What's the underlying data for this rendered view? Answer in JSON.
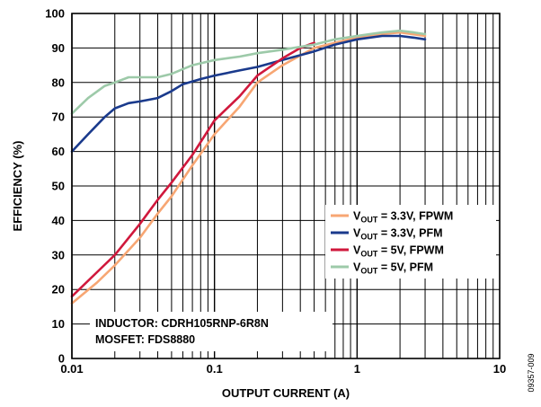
{
  "chart_data": {
    "type": "line",
    "xlabel": "OUTPUT CURRENT (A)",
    "ylabel": "EFFICIENCY (%)",
    "x_scale": "log",
    "xlim": [
      0.01,
      10
    ],
    "ylim": [
      0,
      100
    ],
    "x_ticks": [
      {
        "value": 0.01,
        "label": "0.01"
      },
      {
        "value": 0.1,
        "label": "0.1"
      },
      {
        "value": 1,
        "label": "1"
      },
      {
        "value": 10,
        "label": "10"
      }
    ],
    "y_ticks": [
      0,
      10,
      20,
      30,
      40,
      50,
      60,
      70,
      80,
      90,
      100
    ],
    "grid": true,
    "legend_position": "center-right",
    "series": [
      {
        "name_main": "V",
        "name_sub": "OUT",
        "name_rest": " = 3.3V, FPWM",
        "color": "#f7a673",
        "points": [
          [
            0.01,
            16
          ],
          [
            0.015,
            22
          ],
          [
            0.02,
            27
          ],
          [
            0.03,
            35
          ],
          [
            0.04,
            42
          ],
          [
            0.05,
            47
          ],
          [
            0.07,
            56
          ],
          [
            0.1,
            65
          ],
          [
            0.15,
            73
          ],
          [
            0.2,
            80
          ],
          [
            0.3,
            85
          ],
          [
            0.5,
            90
          ],
          [
            0.7,
            91.5
          ],
          [
            1,
            93
          ],
          [
            1.5,
            94
          ],
          [
            2,
            94.5
          ],
          [
            3,
            93.5
          ]
        ]
      },
      {
        "name_main": "V",
        "name_sub": "OUT",
        "name_rest": " = 3.3V, PFM",
        "color": "#1a3a8c",
        "points": [
          [
            0.01,
            60
          ],
          [
            0.013,
            65
          ],
          [
            0.017,
            70
          ],
          [
            0.02,
            72.5
          ],
          [
            0.025,
            74
          ],
          [
            0.03,
            74.5
          ],
          [
            0.04,
            75.5
          ],
          [
            0.05,
            77.5
          ],
          [
            0.06,
            79.5
          ],
          [
            0.08,
            81
          ],
          [
            0.1,
            82
          ],
          [
            0.15,
            83.5
          ],
          [
            0.2,
            84.5
          ],
          [
            0.3,
            86.5
          ],
          [
            0.5,
            89
          ],
          [
            0.7,
            91
          ],
          [
            1,
            92.5
          ],
          [
            1.5,
            93.5
          ],
          [
            2,
            93.5
          ],
          [
            2.5,
            93
          ],
          [
            3,
            92.5
          ]
        ]
      },
      {
        "name_main": "V",
        "name_sub": "OUT",
        "name_rest": " = 5V, FPWM",
        "color": "#d0183c",
        "points": [
          [
            0.01,
            18
          ],
          [
            0.015,
            25
          ],
          [
            0.02,
            30
          ],
          [
            0.03,
            39
          ],
          [
            0.04,
            46
          ],
          [
            0.05,
            51
          ],
          [
            0.07,
            59
          ],
          [
            0.1,
            69
          ],
          [
            0.15,
            76
          ],
          [
            0.2,
            82
          ],
          [
            0.3,
            87
          ],
          [
            0.4,
            90
          ],
          [
            0.5,
            91.5
          ]
        ]
      },
      {
        "name_main": "V",
        "name_sub": "OUT",
        "name_rest": " = 5V, PFM",
        "color": "#9dcaa9",
        "points": [
          [
            0.01,
            71
          ],
          [
            0.013,
            75.5
          ],
          [
            0.017,
            79
          ],
          [
            0.02,
            80
          ],
          [
            0.025,
            81.5
          ],
          [
            0.03,
            81.5
          ],
          [
            0.04,
            81.5
          ],
          [
            0.05,
            82.5
          ],
          [
            0.07,
            85
          ],
          [
            0.1,
            86.5
          ],
          [
            0.15,
            87.5
          ],
          [
            0.2,
            88.5
          ],
          [
            0.3,
            89.5
          ],
          [
            0.5,
            91
          ],
          [
            0.7,
            92.5
          ],
          [
            1,
            93.5
          ],
          [
            1.5,
            94.5
          ],
          [
            2,
            95
          ],
          [
            2.5,
            94.5
          ],
          [
            3,
            94
          ]
        ]
      }
    ],
    "annotations": [
      "INDUCTOR: CDRH105RNP-6R8N",
      "MOSFET: FDS8880"
    ],
    "figure_id": "09357-009"
  }
}
